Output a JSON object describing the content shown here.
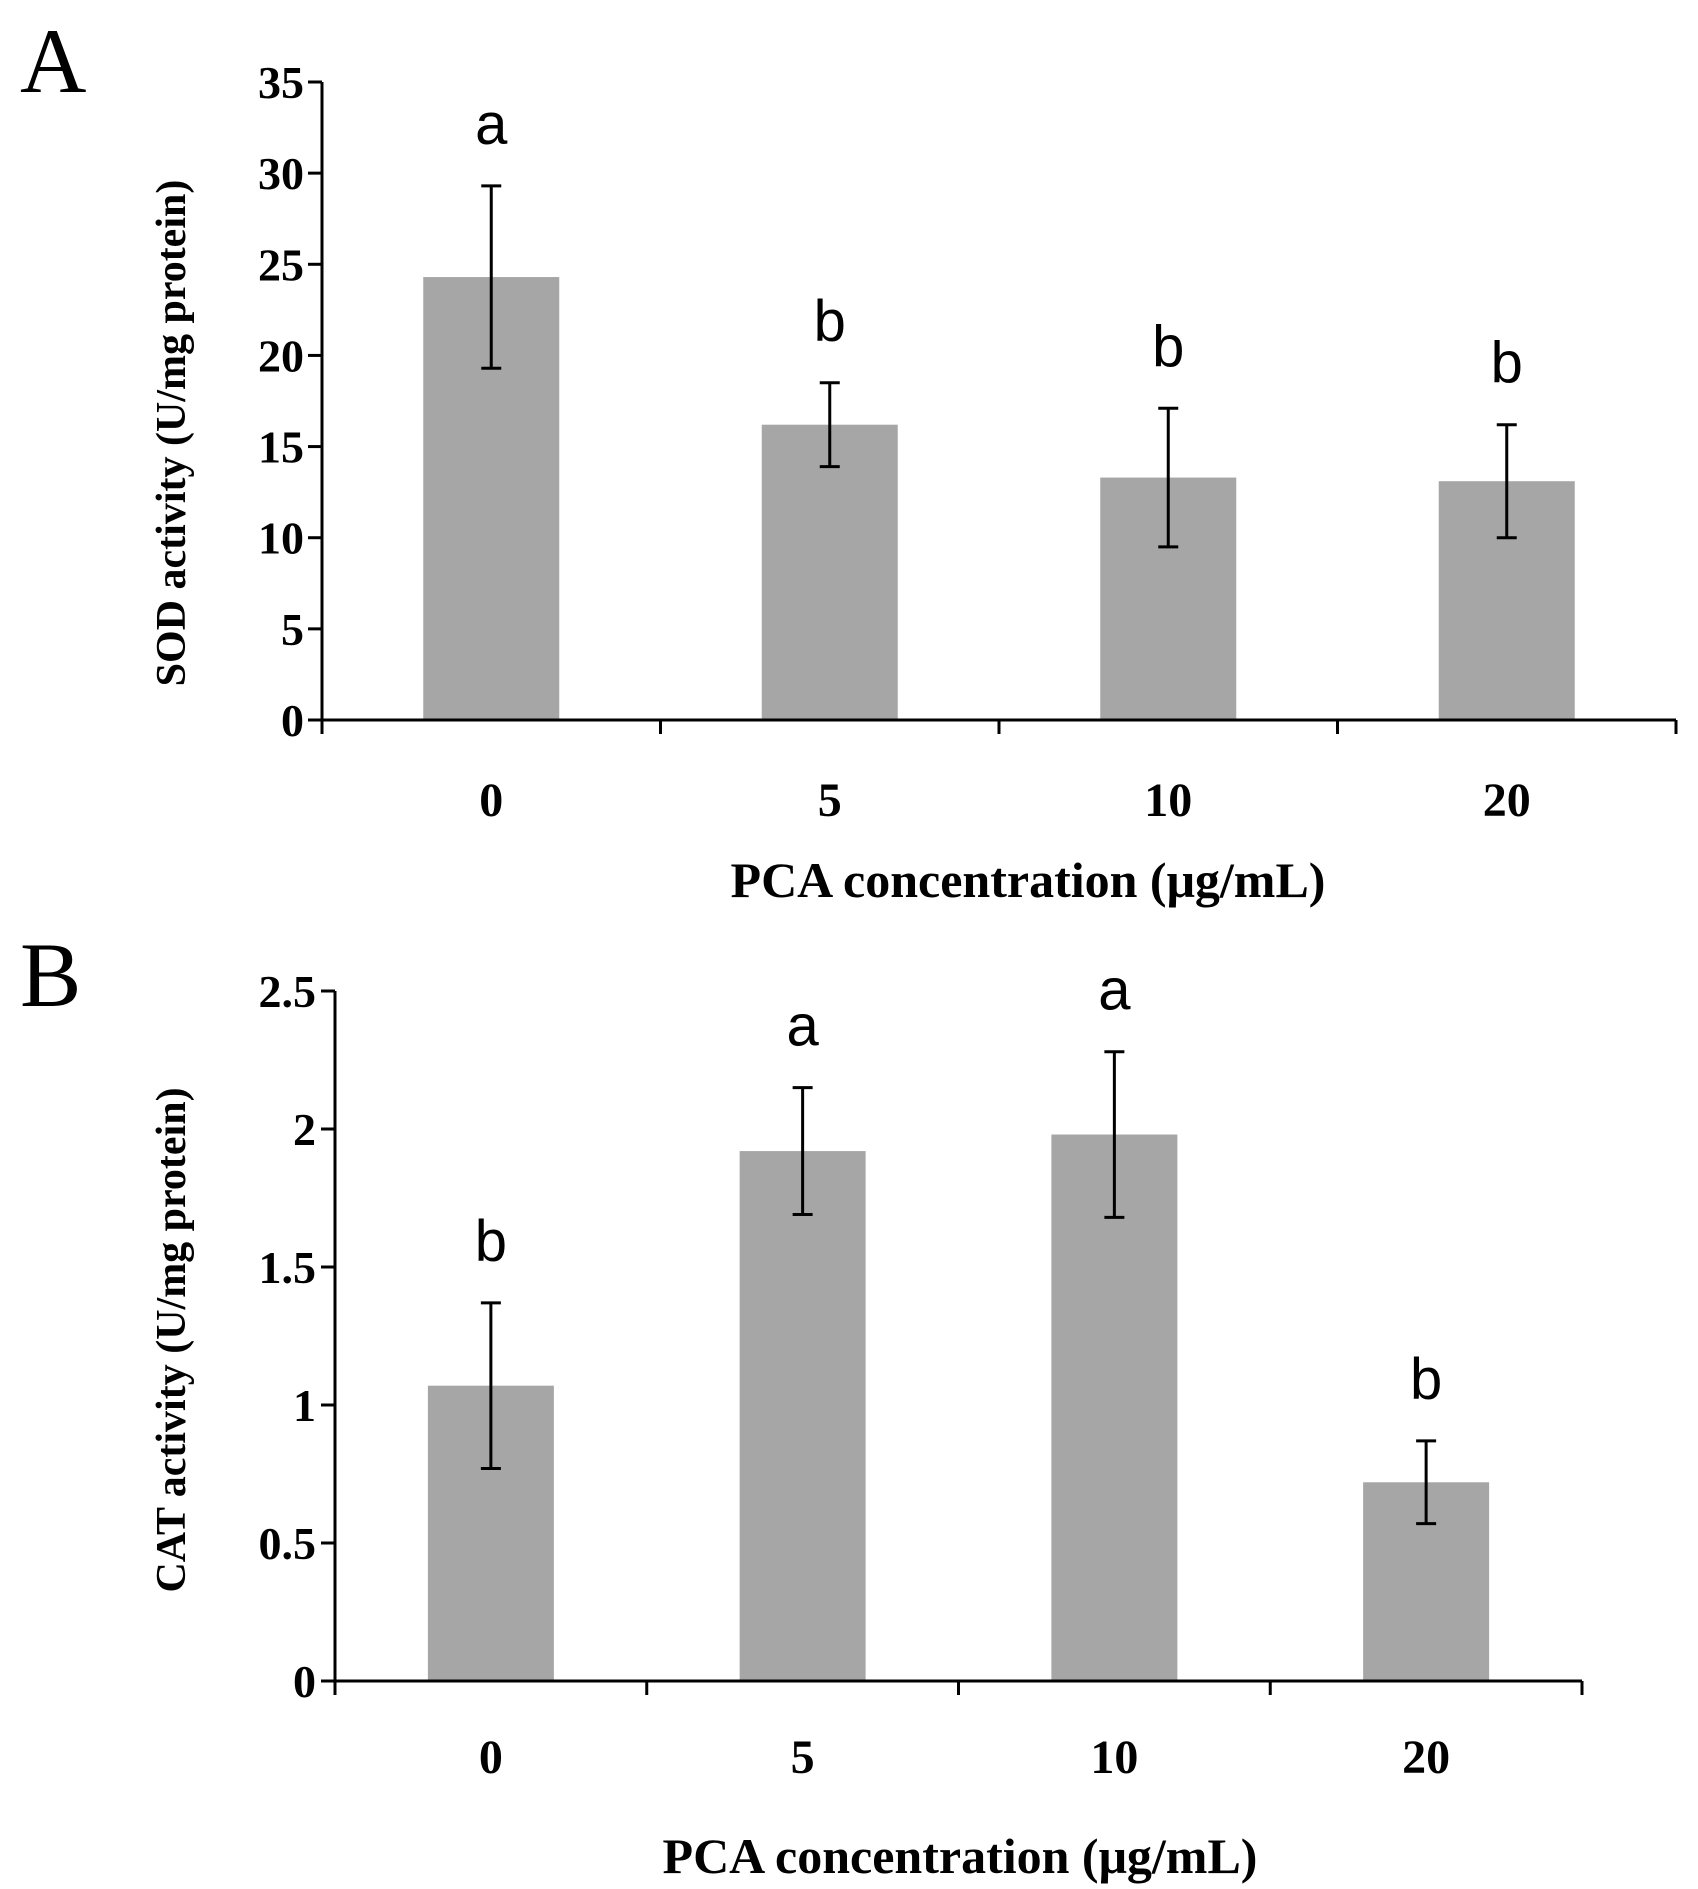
{
  "chart_data": [
    {
      "panel": "A",
      "type": "bar",
      "categories": [
        "0",
        "5",
        "10",
        "20"
      ],
      "values": [
        24.3,
        16.2,
        13.3,
        13.1
      ],
      "errors": [
        5.0,
        2.3,
        3.8,
        3.1
      ],
      "significance": [
        "a",
        "b",
        "b",
        "b"
      ],
      "xlabel": "PCA concentration (μg/mL)",
      "ylabel": "SOD activity (U/mg protein)",
      "ylim": [
        0,
        35
      ],
      "yticks": [
        "0",
        "5",
        "10",
        "15",
        "20",
        "25",
        "30",
        "35"
      ],
      "grid": false,
      "bar_color": "#a6a6a6"
    },
    {
      "panel": "B",
      "type": "bar",
      "categories": [
        "0",
        "5",
        "10",
        "20"
      ],
      "values": [
        1.07,
        1.92,
        1.98,
        0.72
      ],
      "errors": [
        0.3,
        0.23,
        0.3,
        0.15
      ],
      "significance": [
        "b",
        "a",
        "a",
        "b"
      ],
      "xlabel": "PCA concentration (μg/mL)",
      "ylabel": "CAT activity (U/mg protein)",
      "ylim": [
        0,
        2.5
      ],
      "yticks": [
        "0",
        "0.5",
        "1",
        "1.5",
        "2",
        "2.5"
      ],
      "grid": false,
      "bar_color": "#a6a6a6"
    }
  ]
}
